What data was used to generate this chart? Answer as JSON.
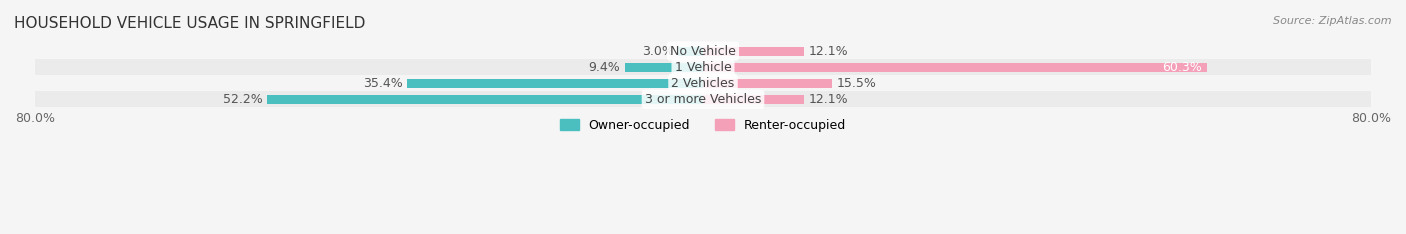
{
  "title": "HOUSEHOLD VEHICLE USAGE IN SPRINGFIELD",
  "source": "Source: ZipAtlas.com",
  "categories": [
    "No Vehicle",
    "1 Vehicle",
    "2 Vehicles",
    "3 or more Vehicles"
  ],
  "owner_values": [
    3.0,
    9.4,
    35.4,
    52.2
  ],
  "renter_values": [
    12.1,
    60.3,
    15.5,
    12.1
  ],
  "owner_color": "#4BBFBF",
  "renter_color": "#F4A0B8",
  "bar_bg_color": "#ECECEC",
  "row_bg_colors": [
    "#F5F5F5",
    "#EBEBEB",
    "#F5F5F5",
    "#EBEBEB"
  ],
  "xlim": [
    -80,
    80
  ],
  "xticks": [
    -80,
    80
  ],
  "xticklabels": [
    "80.0%",
    "80.0%"
  ],
  "legend_owner": "Owner-occupied",
  "legend_renter": "Renter-occupied",
  "title_fontsize": 11,
  "source_fontsize": 8,
  "bar_height": 0.55,
  "label_fontsize": 9
}
